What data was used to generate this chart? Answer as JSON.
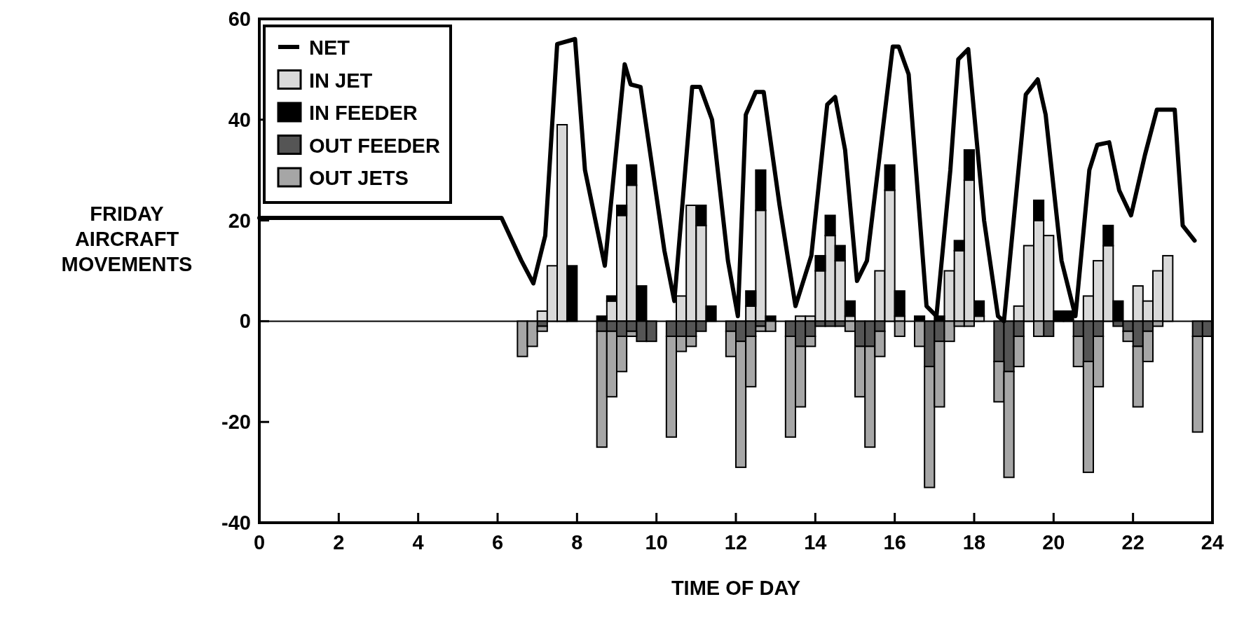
{
  "chart_data": {
    "type": "bar",
    "stacked": true,
    "xlabel": "TIME OF DAY",
    "ylabel": "FRIDAY AIRCRAFT MOVEMENTS",
    "xlim": [
      0,
      24
    ],
    "xticks": [
      0,
      2,
      4,
      6,
      8,
      10,
      12,
      14,
      16,
      18,
      20,
      22,
      24
    ],
    "ylim": [
      -40,
      60
    ],
    "yticks": [
      -40,
      -20,
      0,
      20,
      40,
      60
    ],
    "grid": false,
    "legend": "top left",
    "ref_lines": [
      {
        "axis": "y",
        "value": 0,
        "label": null,
        "color": "#000000"
      }
    ],
    "x": [
      6.625,
      6.875,
      7.125,
      7.375,
      7.625,
      7.875,
      8.625,
      8.875,
      9.125,
      9.375,
      9.625,
      9.875,
      10.375,
      10.625,
      10.875,
      11.125,
      11.375,
      11.875,
      12.125,
      12.375,
      12.625,
      12.875,
      13.375,
      13.625,
      13.875,
      14.125,
      14.375,
      14.625,
      14.875,
      15.125,
      15.375,
      15.625,
      15.875,
      16.125,
      16.625,
      16.875,
      17.125,
      17.375,
      17.625,
      17.875,
      18.125,
      18.625,
      18.875,
      19.125,
      19.375,
      19.625,
      19.875,
      20.125,
      20.375,
      20.625,
      20.875,
      21.125,
      21.375,
      21.625,
      21.875,
      22.125,
      22.375,
      22.625,
      22.875,
      23.625,
      23.875
    ],
    "series": [
      {
        "name": "NET",
        "type": "line",
        "color": "#000000",
        "x": [
          0,
          6.1,
          6.6,
          6.9,
          7.2,
          7.5,
          7.95,
          8.2,
          8.7,
          9.2,
          9.35,
          9.6,
          10.2,
          10.45,
          10.9,
          11.1,
          11.4,
          11.8,
          12.05,
          12.25,
          12.5,
          12.7,
          13.1,
          13.5,
          13.9,
          14.3,
          14.5,
          14.75,
          15.05,
          15.3,
          15.95,
          16.1,
          16.35,
          16.8,
          17.05,
          17.4,
          17.6,
          17.85,
          18.25,
          18.6,
          18.75,
          19.3,
          19.6,
          19.8,
          20.2,
          20.55,
          20.9,
          21.1,
          21.4,
          21.65,
          21.95,
          22.3,
          22.6,
          23.05,
          23.25,
          23.55
        ],
        "values": [
          20.5,
          20.5,
          12,
          7.5,
          17,
          55,
          56,
          30,
          11,
          51,
          47,
          46.5,
          14,
          4,
          46.5,
          46.5,
          40,
          12,
          1,
          41,
          45.5,
          45.5,
          23,
          3,
          13,
          43,
          44.5,
          34,
          8,
          12,
          54.5,
          54.5,
          49,
          3,
          1,
          30,
          52,
          54,
          20,
          1,
          0,
          45,
          48,
          41,
          12,
          1,
          30,
          35,
          35.5,
          26,
          21,
          33,
          42,
          42,
          19,
          16
        ]
      },
      {
        "name": "IN JET",
        "color": "#d9d9d9",
        "values": [
          null,
          null,
          2,
          11,
          39,
          null,
          null,
          4,
          21,
          27,
          null,
          null,
          null,
          5,
          23,
          19,
          null,
          null,
          null,
          3,
          22,
          null,
          null,
          1,
          1,
          10,
          17,
          12,
          1,
          null,
          null,
          10,
          26,
          1,
          null,
          null,
          null,
          10,
          14,
          28,
          1,
          null,
          null,
          3,
          15,
          20,
          17,
          null,
          null,
          null,
          5,
          12,
          15,
          null,
          null,
          7,
          4,
          10,
          13,
          null,
          null
        ]
      },
      {
        "name": "IN FEEDER",
        "color": "#000000",
        "values": [
          null,
          null,
          null,
          null,
          null,
          11,
          1,
          1,
          2,
          4,
          7,
          null,
          null,
          null,
          null,
          4,
          3,
          null,
          null,
          3,
          8,
          1,
          null,
          null,
          null,
          3,
          4,
          3,
          3,
          null,
          null,
          null,
          5,
          5,
          1,
          null,
          1,
          null,
          2,
          6,
          3,
          null,
          null,
          null,
          null,
          4,
          null,
          2,
          2,
          null,
          null,
          null,
          4,
          4,
          null,
          null,
          null,
          null,
          null,
          null,
          null
        ]
      },
      {
        "name": "OUT FEEDER",
        "color": "#555555",
        "values": [
          null,
          null,
          -1,
          null,
          null,
          null,
          -2,
          -2,
          -3,
          -2,
          -4,
          -4,
          -3,
          -3,
          -3,
          -2,
          null,
          -2,
          -4,
          -3,
          -1,
          null,
          -3,
          -5,
          -3,
          -1,
          -1,
          -1,
          null,
          -5,
          -5,
          -2,
          null,
          null,
          null,
          -9,
          -4,
          null,
          null,
          null,
          null,
          -8,
          -10,
          -3,
          null,
          null,
          -3,
          null,
          null,
          -3,
          -8,
          -3,
          null,
          -1,
          -2,
          -5,
          -2,
          null,
          null,
          -3,
          -3
        ]
      },
      {
        "name": "OUT JETS",
        "color": "#a6a6a6",
        "values": [
          -7,
          -5,
          -1,
          null,
          null,
          null,
          -23,
          -13,
          -7,
          -1,
          null,
          null,
          -20,
          -3,
          -2,
          null,
          null,
          -5,
          -25,
          -10,
          -1,
          -2,
          -20,
          -12,
          -2,
          null,
          null,
          null,
          -2,
          -10,
          -20,
          -5,
          null,
          -3,
          -5,
          -24,
          -13,
          -4,
          -1,
          -1,
          null,
          -8,
          -21,
          -6,
          null,
          -3,
          null,
          null,
          null,
          -6,
          -22,
          -10,
          null,
          null,
          -2,
          -12,
          -6,
          -1,
          null,
          -19,
          null
        ]
      }
    ]
  }
}
